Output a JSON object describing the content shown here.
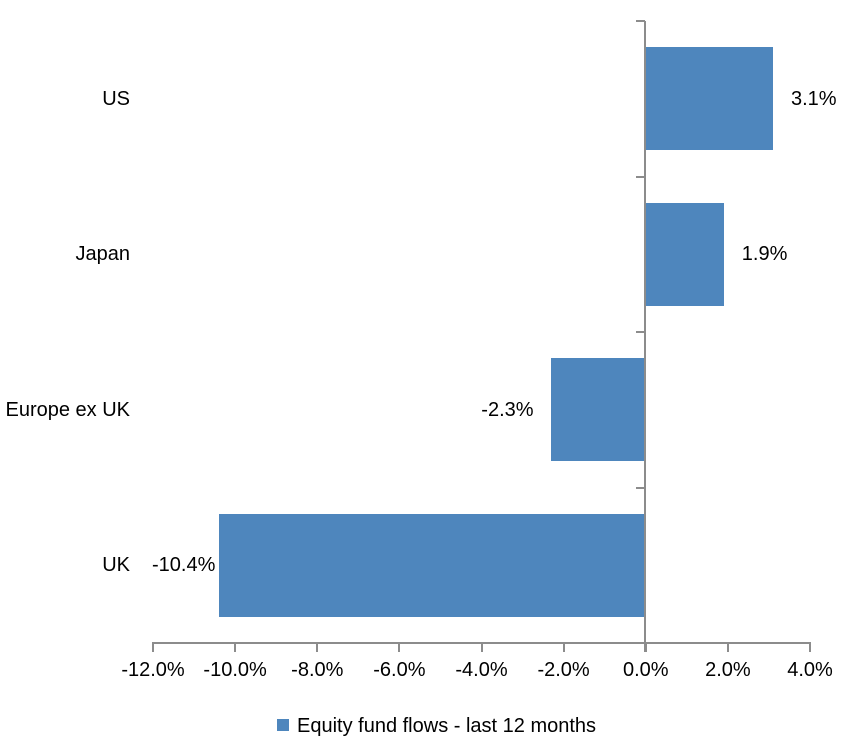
{
  "chart_data": {
    "type": "bar",
    "orientation": "horizontal",
    "title": "",
    "categories": [
      "US",
      "Japan",
      "Europe ex UK",
      "UK"
    ],
    "series": [
      {
        "name": "Equity fund flows - last 12 months",
        "values": [
          3.1,
          1.9,
          -2.3,
          -10.4
        ]
      }
    ],
    "data_labels": [
      "3.1%",
      "1.9%",
      "-2.3%",
      "-10.4%"
    ],
    "x_axis": {
      "range": [
        -12,
        4
      ],
      "tick_values": [
        -12,
        -10,
        -8,
        -6,
        -4,
        -2,
        0,
        2,
        4
      ],
      "tick_labels": [
        "-12.0%",
        "-10.0%",
        "-8.0%",
        "-6.0%",
        "-4.0%",
        "-2.0%",
        "0.0%",
        "2.0%",
        "4.0%"
      ],
      "unit": "%"
    },
    "grid": false,
    "legend": {
      "position": "bottom",
      "label": "Equity fund flows - last 12 months"
    },
    "colors": {
      "bar": "#4E86BD",
      "axis": "#8C8C8C",
      "text": "#000000",
      "background": "#FFFFFF"
    }
  }
}
